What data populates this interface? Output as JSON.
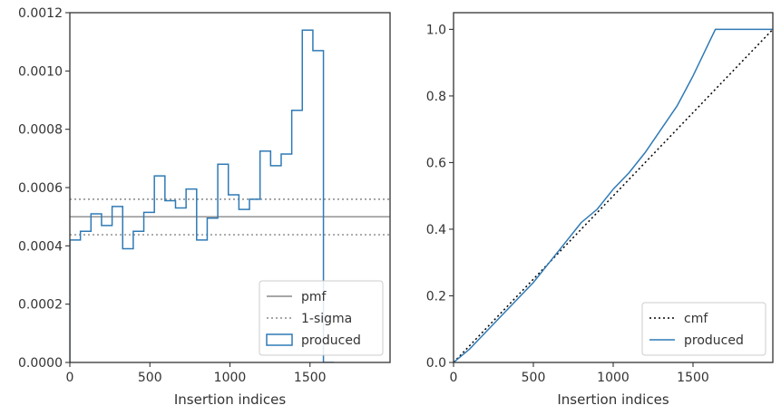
{
  "chart_data": [
    {
      "type": "line",
      "subtype": "histogram-step",
      "xlabel": "Insertion indices",
      "ylabel": "",
      "xlim": [
        0,
        2000
      ],
      "ylim": [
        0,
        0.0012
      ],
      "xticks": [
        0,
        500,
        1000,
        1500
      ],
      "yticks": [
        0.0,
        0.0002,
        0.0004,
        0.0006,
        0.0008,
        0.001,
        0.0012
      ],
      "ytick_labels": [
        "0.0000",
        "0.0002",
        "0.0004",
        "0.0006",
        "0.0008",
        "0.0010",
        "0.0012"
      ],
      "hlines": [
        {
          "name": "pmf",
          "value": 0.0005,
          "style": "solid",
          "color": "#888888"
        },
        {
          "name": "1-sigma",
          "value": 0.00056,
          "style": "dotted",
          "color": "#888888"
        },
        {
          "name": "1-sigma",
          "value": 0.000438,
          "style": "dotted",
          "color": "#888888"
        }
      ],
      "series": [
        {
          "name": "produced",
          "color": "#2f7ab5",
          "bin_edges": [
            0,
            66,
            132,
            198,
            264,
            330,
            396,
            462,
            528,
            594,
            660,
            726,
            792,
            858,
            924,
            990,
            1056,
            1122,
            1188,
            1254,
            1320,
            1386,
            1452,
            1518,
            1584,
            1650
          ],
          "values": [
            0.00042,
            0.00045,
            0.00051,
            0.00047,
            0.000535,
            0.00039,
            0.00045,
            0.000515,
            0.00064,
            0.000555,
            0.00053,
            0.000595,
            0.00042,
            0.000495,
            0.00068,
            0.000575,
            0.000525,
            0.00056,
            0.000725,
            0.000675,
            0.000715,
            0.000865,
            0.00114,
            0.00107,
            0.0
          ]
        }
      ],
      "legend": {
        "position": "lower-right",
        "entries": [
          "pmf",
          "1-sigma",
          "produced"
        ]
      }
    },
    {
      "type": "line",
      "xlabel": "Insertion indices",
      "ylabel": "",
      "xlim": [
        0,
        2000
      ],
      "ylim": [
        0,
        1.05
      ],
      "xticks": [
        0,
        500,
        1000,
        1500
      ],
      "yticks": [
        0.0,
        0.2,
        0.4,
        0.6,
        0.8,
        1.0
      ],
      "ytick_labels": [
        "0.0",
        "0.2",
        "0.4",
        "0.6",
        "0.8",
        "1.0"
      ],
      "series": [
        {
          "name": "cmf",
          "style": "dotted",
          "color": "#000000",
          "x": [
            0,
            2000
          ],
          "y": [
            0.0,
            1.0
          ]
        },
        {
          "name": "produced",
          "style": "solid",
          "color": "#2f7ab5",
          "x": [
            0,
            100,
            200,
            300,
            400,
            500,
            600,
            700,
            800,
            900,
            1000,
            1100,
            1200,
            1300,
            1400,
            1500,
            1550,
            1600,
            1640,
            1700,
            2000
          ],
          "y": [
            0.0,
            0.04,
            0.09,
            0.14,
            0.19,
            0.24,
            0.3,
            0.36,
            0.42,
            0.46,
            0.52,
            0.57,
            0.63,
            0.7,
            0.77,
            0.86,
            0.91,
            0.96,
            1.0,
            1.0,
            1.0
          ]
        }
      ],
      "legend": {
        "position": "lower-right",
        "entries": [
          "cmf",
          "produced"
        ]
      }
    }
  ]
}
